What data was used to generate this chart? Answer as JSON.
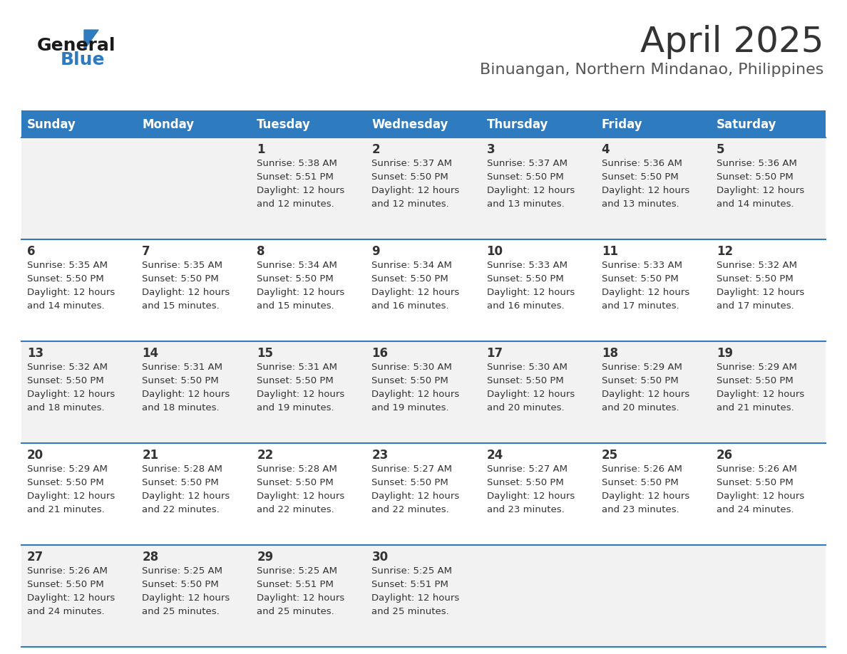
{
  "title": "April 2025",
  "subtitle": "Binuangan, Northern Mindanao, Philippines",
  "days_of_week": [
    "Sunday",
    "Monday",
    "Tuesday",
    "Wednesday",
    "Thursday",
    "Friday",
    "Saturday"
  ],
  "header_bg": "#2E7BBF",
  "header_text": "#FFFFFF",
  "row_bg_odd": "#F2F2F2",
  "row_bg_even": "#FFFFFF",
  "divider_color": "#2E7BBF",
  "cell_text_color": "#333333",
  "title_color": "#333333",
  "subtitle_color": "#555555",
  "calendar_data": [
    [
      {
        "day": "",
        "sunrise": "",
        "sunset": "",
        "daylight_hours": 0,
        "daylight_minutes": 0
      },
      {
        "day": "",
        "sunrise": "",
        "sunset": "",
        "daylight_hours": 0,
        "daylight_minutes": 0
      },
      {
        "day": "1",
        "sunrise": "5:38 AM",
        "sunset": "5:51 PM",
        "daylight_hours": 12,
        "daylight_minutes": 12
      },
      {
        "day": "2",
        "sunrise": "5:37 AM",
        "sunset": "5:50 PM",
        "daylight_hours": 12,
        "daylight_minutes": 12
      },
      {
        "day": "3",
        "sunrise": "5:37 AM",
        "sunset": "5:50 PM",
        "daylight_hours": 12,
        "daylight_minutes": 13
      },
      {
        "day": "4",
        "sunrise": "5:36 AM",
        "sunset": "5:50 PM",
        "daylight_hours": 12,
        "daylight_minutes": 13
      },
      {
        "day": "5",
        "sunrise": "5:36 AM",
        "sunset": "5:50 PM",
        "daylight_hours": 12,
        "daylight_minutes": 14
      }
    ],
    [
      {
        "day": "6",
        "sunrise": "5:35 AM",
        "sunset": "5:50 PM",
        "daylight_hours": 12,
        "daylight_minutes": 14
      },
      {
        "day": "7",
        "sunrise": "5:35 AM",
        "sunset": "5:50 PM",
        "daylight_hours": 12,
        "daylight_minutes": 15
      },
      {
        "day": "8",
        "sunrise": "5:34 AM",
        "sunset": "5:50 PM",
        "daylight_hours": 12,
        "daylight_minutes": 15
      },
      {
        "day": "9",
        "sunrise": "5:34 AM",
        "sunset": "5:50 PM",
        "daylight_hours": 12,
        "daylight_minutes": 16
      },
      {
        "day": "10",
        "sunrise": "5:33 AM",
        "sunset": "5:50 PM",
        "daylight_hours": 12,
        "daylight_minutes": 16
      },
      {
        "day": "11",
        "sunrise": "5:33 AM",
        "sunset": "5:50 PM",
        "daylight_hours": 12,
        "daylight_minutes": 17
      },
      {
        "day": "12",
        "sunrise": "5:32 AM",
        "sunset": "5:50 PM",
        "daylight_hours": 12,
        "daylight_minutes": 17
      }
    ],
    [
      {
        "day": "13",
        "sunrise": "5:32 AM",
        "sunset": "5:50 PM",
        "daylight_hours": 12,
        "daylight_minutes": 18
      },
      {
        "day": "14",
        "sunrise": "5:31 AM",
        "sunset": "5:50 PM",
        "daylight_hours": 12,
        "daylight_minutes": 18
      },
      {
        "day": "15",
        "sunrise": "5:31 AM",
        "sunset": "5:50 PM",
        "daylight_hours": 12,
        "daylight_minutes": 19
      },
      {
        "day": "16",
        "sunrise": "5:30 AM",
        "sunset": "5:50 PM",
        "daylight_hours": 12,
        "daylight_minutes": 19
      },
      {
        "day": "17",
        "sunrise": "5:30 AM",
        "sunset": "5:50 PM",
        "daylight_hours": 12,
        "daylight_minutes": 20
      },
      {
        "day": "18",
        "sunrise": "5:29 AM",
        "sunset": "5:50 PM",
        "daylight_hours": 12,
        "daylight_minutes": 20
      },
      {
        "day": "19",
        "sunrise": "5:29 AM",
        "sunset": "5:50 PM",
        "daylight_hours": 12,
        "daylight_minutes": 21
      }
    ],
    [
      {
        "day": "20",
        "sunrise": "5:29 AM",
        "sunset": "5:50 PM",
        "daylight_hours": 12,
        "daylight_minutes": 21
      },
      {
        "day": "21",
        "sunrise": "5:28 AM",
        "sunset": "5:50 PM",
        "daylight_hours": 12,
        "daylight_minutes": 22
      },
      {
        "day": "22",
        "sunrise": "5:28 AM",
        "sunset": "5:50 PM",
        "daylight_hours": 12,
        "daylight_minutes": 22
      },
      {
        "day": "23",
        "sunrise": "5:27 AM",
        "sunset": "5:50 PM",
        "daylight_hours": 12,
        "daylight_minutes": 22
      },
      {
        "day": "24",
        "sunrise": "5:27 AM",
        "sunset": "5:50 PM",
        "daylight_hours": 12,
        "daylight_minutes": 23
      },
      {
        "day": "25",
        "sunrise": "5:26 AM",
        "sunset": "5:50 PM",
        "daylight_hours": 12,
        "daylight_minutes": 23
      },
      {
        "day": "26",
        "sunrise": "5:26 AM",
        "sunset": "5:50 PM",
        "daylight_hours": 12,
        "daylight_minutes": 24
      }
    ],
    [
      {
        "day": "27",
        "sunrise": "5:26 AM",
        "sunset": "5:50 PM",
        "daylight_hours": 12,
        "daylight_minutes": 24
      },
      {
        "day": "28",
        "sunrise": "5:25 AM",
        "sunset": "5:50 PM",
        "daylight_hours": 12,
        "daylight_minutes": 25
      },
      {
        "day": "29",
        "sunrise": "5:25 AM",
        "sunset": "5:51 PM",
        "daylight_hours": 12,
        "daylight_minutes": 25
      },
      {
        "day": "30",
        "sunrise": "5:25 AM",
        "sunset": "5:51 PM",
        "daylight_hours": 12,
        "daylight_minutes": 25
      },
      {
        "day": "",
        "sunrise": "",
        "sunset": "",
        "daylight_hours": 0,
        "daylight_minutes": 0
      },
      {
        "day": "",
        "sunrise": "",
        "sunset": "",
        "daylight_hours": 0,
        "daylight_minutes": 0
      },
      {
        "day": "",
        "sunrise": "",
        "sunset": "",
        "daylight_hours": 0,
        "daylight_minutes": 0
      }
    ]
  ],
  "logo_text_general": "General",
  "logo_text_blue": "Blue",
  "logo_triangle_color": "#2E7BBF"
}
